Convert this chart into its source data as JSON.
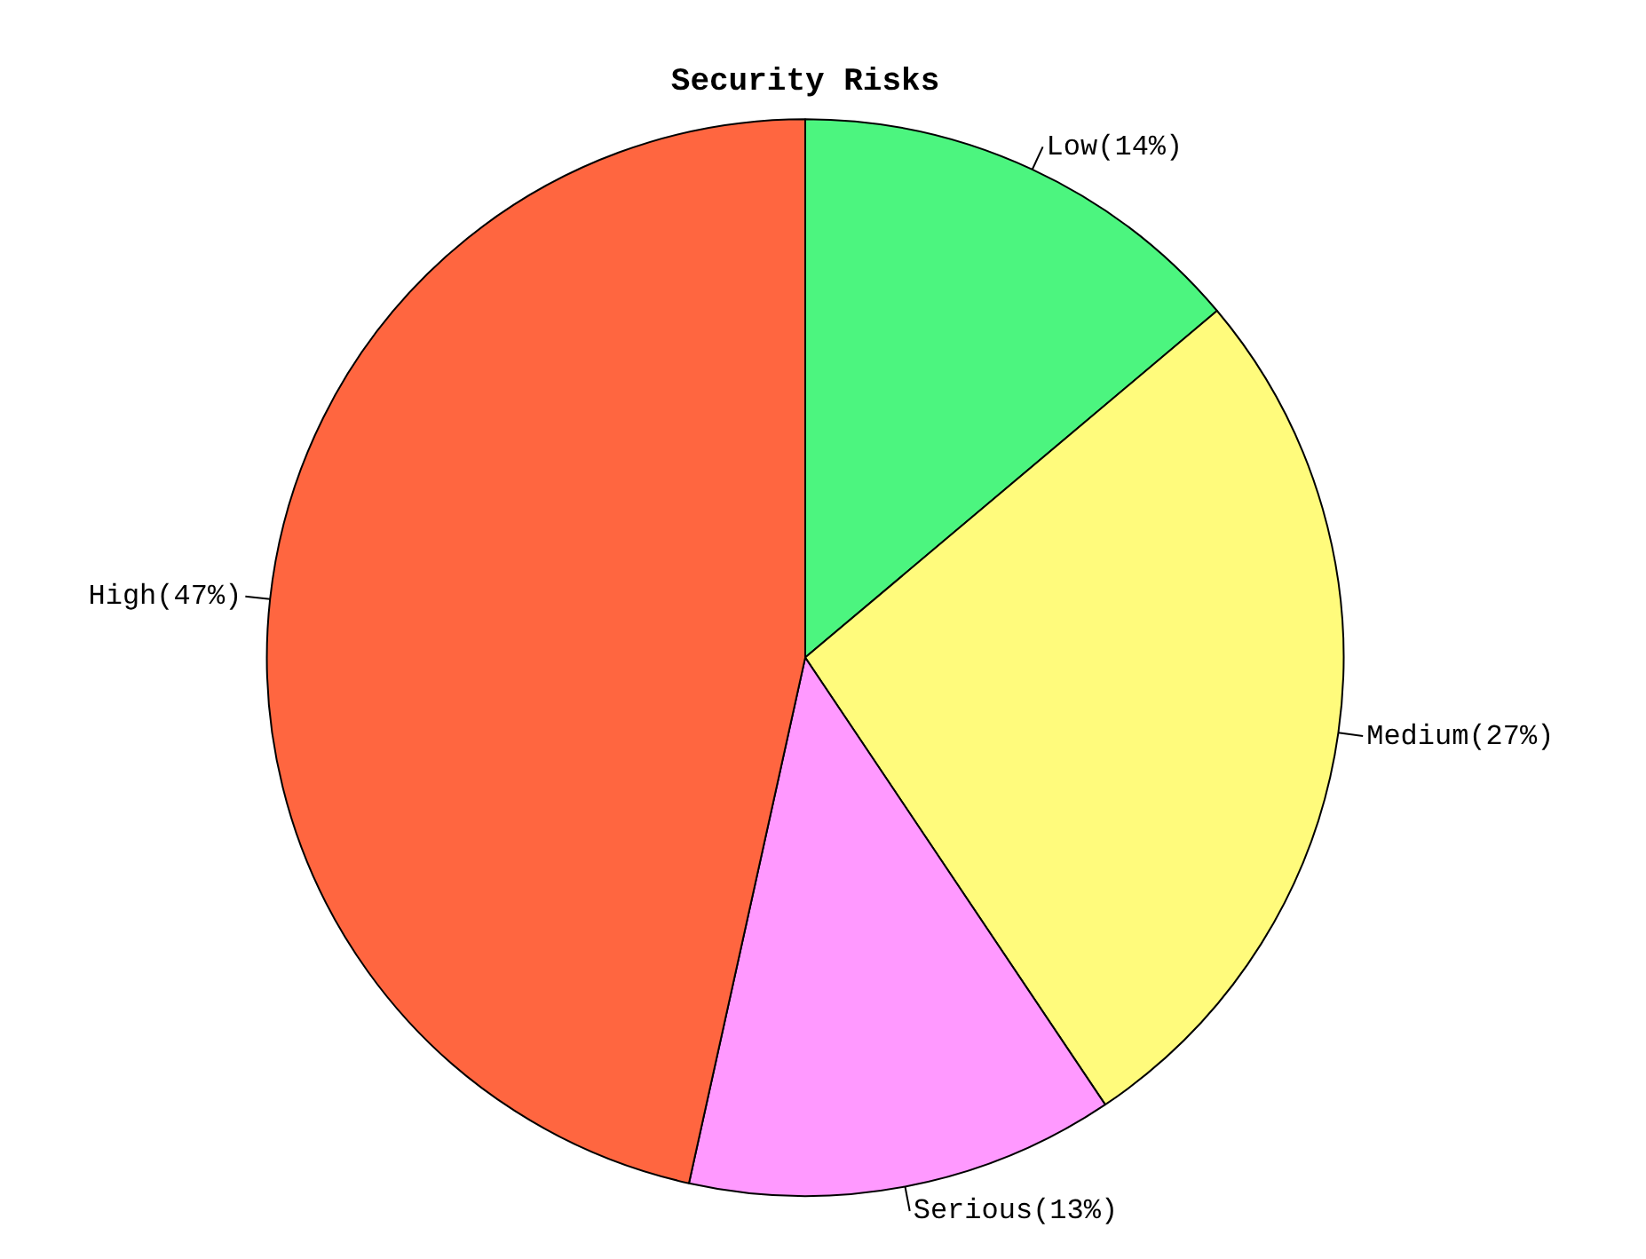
{
  "chart_data": {
    "type": "pie",
    "title": "Security Risks",
    "categories": [
      "Low",
      "Medium",
      "Serious",
      "High"
    ],
    "values": [
      14,
      27,
      13,
      47
    ],
    "value_labels": [
      "(14%)",
      "(27%)",
      "(13%)",
      "(47%)"
    ],
    "colors": [
      "#4cf57f",
      "#fffb7c",
      "#ff99ff",
      "#ff6640"
    ],
    "legend": false
  }
}
